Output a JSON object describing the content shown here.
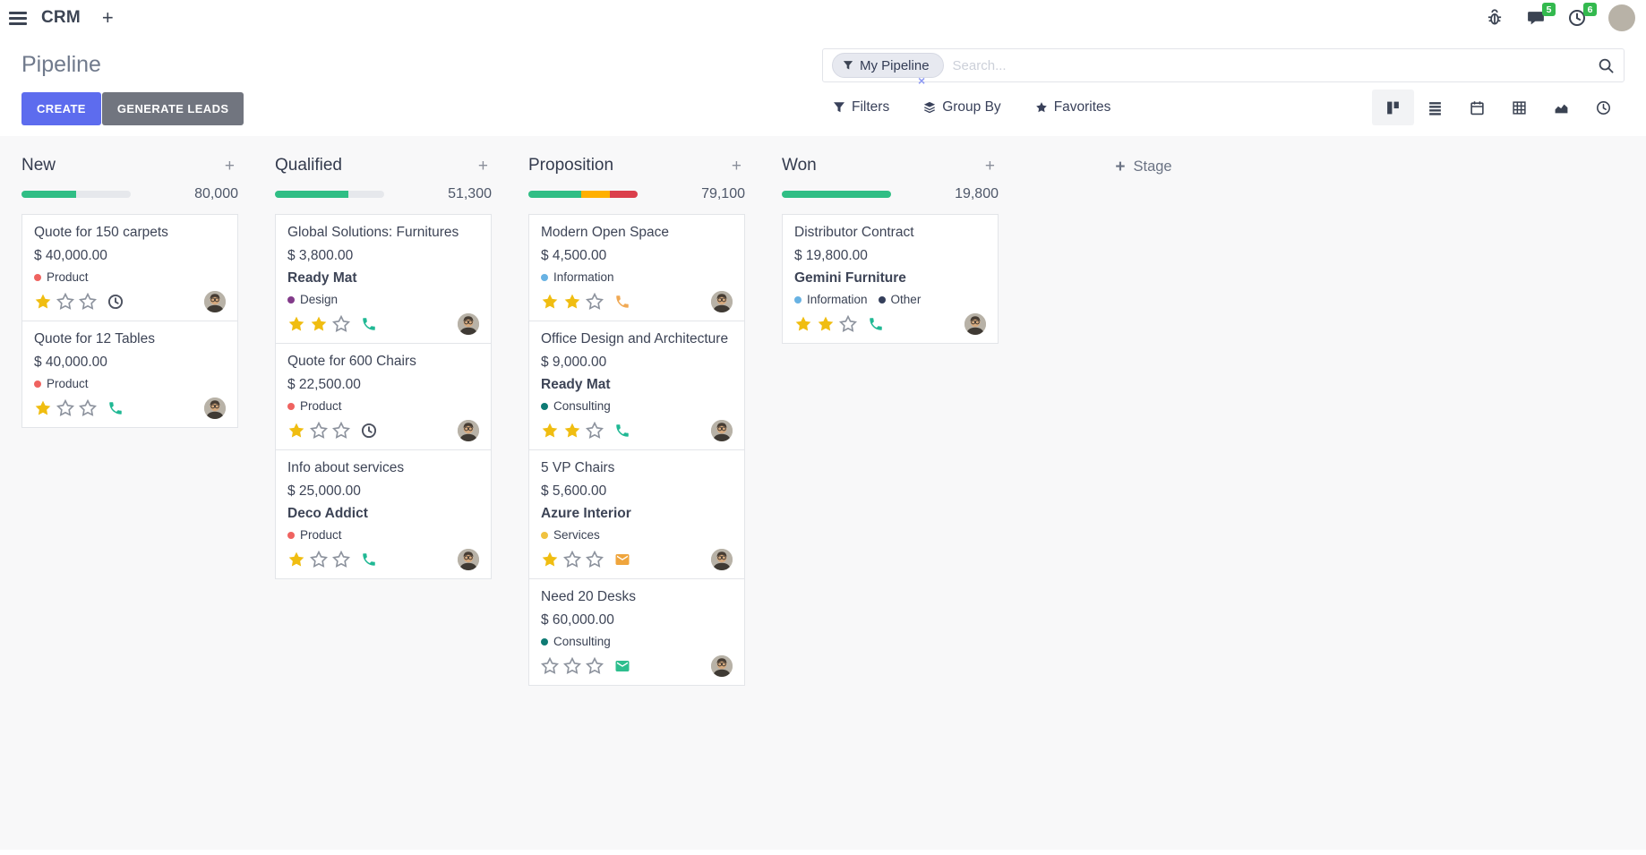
{
  "navbar": {
    "app_name": "CRM",
    "add_tab_label": "+",
    "messages_count": "5",
    "activities_count": "6"
  },
  "control_panel": {
    "title": "Pipeline",
    "buttons": {
      "create": "CREATE",
      "generate_leads": "GENERATE LEADS"
    },
    "search": {
      "facet_label": "My Pipeline",
      "placeholder": "Search...",
      "remove_label": "×"
    },
    "actions": {
      "filters": "Filters",
      "group_by": "Group By",
      "favorites": "Favorites"
    }
  },
  "board": {
    "add_stage_plus": "+",
    "add_stage_label": "Stage",
    "column_add_label": "+",
    "max_stars": 3,
    "columns": [
      {
        "name": "New",
        "sum": "80,000",
        "progress": [
          {
            "color": "#30be85",
            "pct": 50
          }
        ],
        "cards": [
          {
            "title": "Quote for 150 carpets",
            "amount": "$ 40,000.00",
            "partner": "",
            "tags": [
              {
                "label": "Product",
                "color": "#ef6360"
              }
            ],
            "stars": 1,
            "activity": {
              "type": "clock",
              "color": "#4d5260"
            }
          },
          {
            "title": "Quote for 12 Tables",
            "amount": "$ 40,000.00",
            "partner": "",
            "tags": [
              {
                "label": "Product",
                "color": "#ef6360"
              }
            ],
            "stars": 1,
            "activity": {
              "type": "phone",
              "color": "#20b894"
            }
          }
        ]
      },
      {
        "name": "Qualified",
        "sum": "51,300",
        "progress": [
          {
            "color": "#30be85",
            "pct": 67
          }
        ],
        "cards": [
          {
            "title": "Global Solutions: Furnitures",
            "amount": "$ 3,800.00",
            "partner": "Ready Mat",
            "tags": [
              {
                "label": "Design",
                "color": "#823b8a"
              }
            ],
            "stars": 2,
            "activity": {
              "type": "phone",
              "color": "#20b894"
            }
          },
          {
            "title": "Quote for 600 Chairs",
            "amount": "$ 22,500.00",
            "partner": "",
            "tags": [
              {
                "label": "Product",
                "color": "#ef6360"
              }
            ],
            "stars": 1,
            "activity": {
              "type": "clock",
              "color": "#4d5260"
            }
          },
          {
            "title": "Info about services",
            "amount": "$ 25,000.00",
            "partner": "Deco Addict",
            "tags": [
              {
                "label": "Product",
                "color": "#ef6360"
              }
            ],
            "stars": 1,
            "activity": {
              "type": "phone",
              "color": "#20b894"
            }
          }
        ]
      },
      {
        "name": "Proposition",
        "sum": "79,100",
        "progress": [
          {
            "color": "#30be85",
            "pct": 48
          },
          {
            "color": "#ffb000",
            "pct": 27
          },
          {
            "color": "#db3f4c",
            "pct": 25
          }
        ],
        "cards": [
          {
            "title": "Modern Open Space",
            "amount": "$ 4,500.00",
            "partner": "",
            "tags": [
              {
                "label": "Information",
                "color": "#68b2e3"
              }
            ],
            "stars": 2,
            "activity": {
              "type": "phone",
              "color": "#f0a954"
            }
          },
          {
            "title": "Office Design and Architecture",
            "amount": "$ 9,000.00",
            "partner": "Ready Mat",
            "tags": [
              {
                "label": "Consulting",
                "color": "#0e7b74"
              }
            ],
            "stars": 2,
            "activity": {
              "type": "phone",
              "color": "#20b894"
            }
          },
          {
            "title": "5 VP Chairs",
            "amount": "$ 5,600.00",
            "partner": "Azure Interior",
            "tags": [
              {
                "label": "Services",
                "color": "#f0c240"
              }
            ],
            "stars": 1,
            "activity": {
              "type": "mail",
              "color": "#efa53d"
            }
          },
          {
            "title": "Need 20 Desks",
            "amount": "$ 60,000.00",
            "partner": "",
            "tags": [
              {
                "label": "Consulting",
                "color": "#0e7b74"
              }
            ],
            "stars": 0,
            "activity": {
              "type": "mail",
              "color": "#2ebe8e"
            }
          }
        ]
      },
      {
        "name": "Won",
        "sum": "19,800",
        "progress": [
          {
            "color": "#30be85",
            "pct": 100
          }
        ],
        "cards": [
          {
            "title": "Distributor Contract",
            "amount": "$ 19,800.00",
            "partner": "Gemini Furniture",
            "tags": [
              {
                "label": "Information",
                "color": "#68b2e3"
              },
              {
                "label": "Other",
                "color": "#353f5b"
              }
            ],
            "stars": 2,
            "activity": {
              "type": "phone",
              "color": "#20b894"
            }
          }
        ]
      }
    ]
  }
}
